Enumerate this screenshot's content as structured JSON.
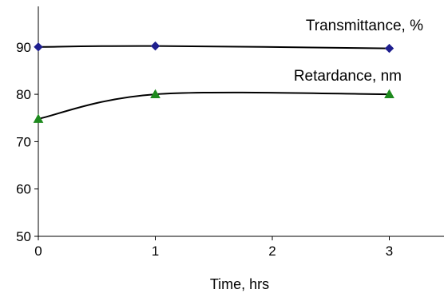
{
  "chart_data": {
    "type": "line",
    "title": "",
    "xlabel": "Time, hrs",
    "ylabel": "",
    "xlim": [
      0,
      3.5
    ],
    "ylim": [
      50,
      95
    ],
    "xticks": [
      0,
      1,
      2,
      3
    ],
    "yticks": [
      50,
      60,
      70,
      80,
      90
    ],
    "grid": false,
    "series": [
      {
        "name": "Transmittance, %",
        "x": [
          0,
          1,
          3
        ],
        "y": [
          90,
          90.2,
          89.7
        ],
        "color": "#000000",
        "marker": "diamond",
        "marker_color": "#1f1f8f"
      },
      {
        "name": "Retardance, nm",
        "x": [
          0,
          1,
          3
        ],
        "y": [
          74.8,
          80,
          80
        ],
        "color": "#000000",
        "marker": "triangle",
        "marker_color": "#1e8a1e"
      }
    ]
  }
}
